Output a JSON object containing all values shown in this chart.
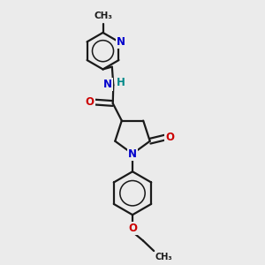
{
  "bg_color": "#ebebeb",
  "bond_color": "#1a1a1a",
  "bond_width": 1.6,
  "atom_colors": {
    "N": "#0000cc",
    "O": "#cc0000",
    "H": "#008888",
    "C": "#1a1a1a"
  },
  "font_size": 8.5,
  "figsize": [
    3.0,
    3.0
  ],
  "dpi": 100
}
